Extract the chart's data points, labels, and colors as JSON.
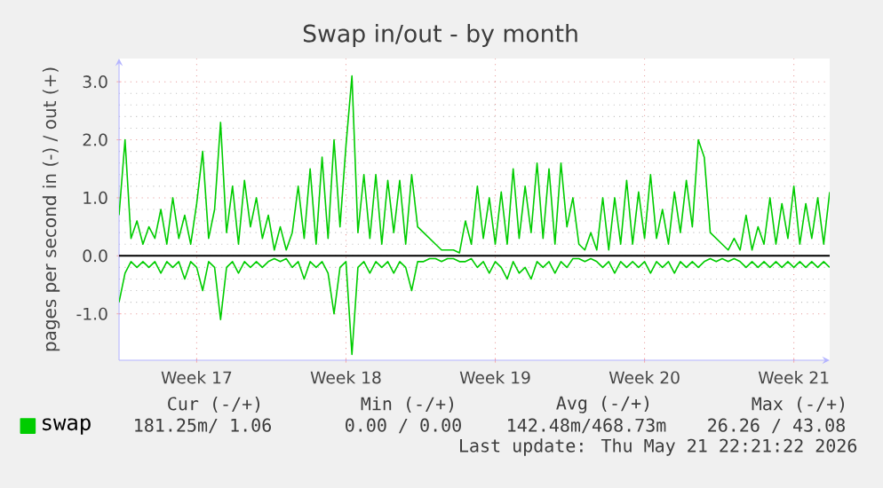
{
  "chart_data": {
    "type": "line",
    "title": "Swap in/out - by month",
    "ylabel": "pages per second in (-) / out (+)",
    "categories": [
      null,
      null,
      null,
      null,
      null,
      null,
      null,
      null,
      null,
      null,
      null,
      null,
      null,
      "Week 17",
      null,
      null,
      null,
      null,
      null,
      null,
      null,
      null,
      null,
      null,
      null,
      null,
      null,
      null,
      null,
      null,
      null,
      null,
      null,
      null,
      null,
      null,
      null,
      null,
      "Week 18",
      null,
      null,
      null,
      null,
      null,
      null,
      null,
      null,
      null,
      null,
      null,
      null,
      null,
      null,
      null,
      null,
      null,
      null,
      null,
      null,
      null,
      null,
      null,
      null,
      "Week 19",
      null,
      null,
      null,
      null,
      null,
      null,
      null,
      null,
      null,
      null,
      null,
      null,
      null,
      null,
      null,
      null,
      null,
      null,
      null,
      null,
      null,
      null,
      null,
      null,
      "Week 20",
      null,
      null,
      null,
      null,
      null,
      null,
      null,
      null,
      null,
      null,
      null,
      null,
      null,
      null,
      null,
      null,
      null,
      null,
      null,
      null,
      null,
      null,
      null,
      null,
      "Week 21",
      null,
      null,
      null,
      null,
      null,
      null
    ],
    "series": [
      {
        "name": "swap",
        "color": "#00cc00",
        "values": [
          0.7,
          2.0,
          0.3,
          0.6,
          0.2,
          0.5,
          0.3,
          0.8,
          0.2,
          1.0,
          0.3,
          0.7,
          0.2,
          0.9,
          1.8,
          0.3,
          0.8,
          2.3,
          0.4,
          1.2,
          0.2,
          1.3,
          0.5,
          1.0,
          0.3,
          0.7,
          0.1,
          0.5,
          0.1,
          0.4,
          1.2,
          0.3,
          1.5,
          0.2,
          1.7,
          0.3,
          2.0,
          0.5,
          1.9,
          3.1,
          0.4,
          1.4,
          0.3,
          1.4,
          0.2,
          1.3,
          0.4,
          1.3,
          0.2,
          1.4,
          0.5,
          0.4,
          0.3,
          0.2,
          0.1,
          0.1,
          0.1,
          0.05,
          0.6,
          0.2,
          1.2,
          0.3,
          1.0,
          0.2,
          1.1,
          0.2,
          1.5,
          0.3,
          1.2,
          0.4,
          1.6,
          0.3,
          1.5,
          0.2,
          1.6,
          0.5,
          1.0,
          0.2,
          0.1,
          0.4,
          0.1,
          1.0,
          0.1,
          1.0,
          0.2,
          1.3,
          0.2,
          1.1,
          0.3,
          1.4,
          0.3,
          0.8,
          0.2,
          1.1,
          0.4,
          1.3,
          0.5,
          2.0,
          1.7,
          0.4,
          0.3,
          0.2,
          0.1,
          0.3,
          0.1,
          0.7,
          0.1,
          0.5,
          0.2,
          1.0,
          0.2,
          0.9,
          0.3,
          1.2,
          0.2,
          0.9,
          0.3,
          1.0,
          0.2,
          1.1
        ]
      },
      {
        "color": "#00cc00",
        "values": [
          -0.8,
          -0.3,
          -0.1,
          -0.2,
          -0.1,
          -0.2,
          -0.1,
          -0.3,
          -0.1,
          -0.2,
          -0.1,
          -0.4,
          -0.1,
          -0.2,
          -0.6,
          -0.1,
          -0.2,
          -1.1,
          -0.2,
          -0.1,
          -0.3,
          -0.1,
          -0.2,
          -0.1,
          -0.2,
          -0.1,
          -0.05,
          -0.1,
          -0.05,
          -0.2,
          -0.1,
          -0.4,
          -0.1,
          -0.2,
          -0.1,
          -0.3,
          -1.0,
          -0.2,
          -0.1,
          -1.7,
          -0.2,
          -0.1,
          -0.3,
          -0.1,
          -0.2,
          -0.1,
          -0.3,
          -0.1,
          -0.2,
          -0.6,
          -0.1,
          -0.1,
          -0.05,
          -0.05,
          -0.1,
          -0.05,
          -0.05,
          -0.1,
          -0.1,
          -0.05,
          -0.2,
          -0.1,
          -0.3,
          -0.1,
          -0.2,
          -0.4,
          -0.1,
          -0.3,
          -0.2,
          -0.4,
          -0.1,
          -0.2,
          -0.1,
          -0.3,
          -0.1,
          -0.2,
          -0.05,
          -0.05,
          -0.1,
          -0.05,
          -0.1,
          -0.2,
          -0.1,
          -0.3,
          -0.1,
          -0.2,
          -0.1,
          -0.2,
          -0.1,
          -0.3,
          -0.1,
          -0.2,
          -0.1,
          -0.3,
          -0.1,
          -0.2,
          -0.1,
          -0.2,
          -0.1,
          -0.05,
          -0.1,
          -0.05,
          -0.1,
          -0.05,
          -0.1,
          -0.2,
          -0.1,
          -0.2,
          -0.1,
          -0.2,
          -0.1,
          -0.2,
          -0.1,
          -0.2,
          -0.1,
          -0.2,
          -0.1,
          -0.2,
          -0.1,
          -0.2
        ]
      }
    ],
    "ylim": [
      -1.8,
      3.4
    ],
    "yticks": [
      {
        "value": -1,
        "label": "-1.0"
      },
      {
        "value": 0,
        "label": "0.0"
      },
      {
        "value": 1,
        "label": "1.0"
      },
      {
        "value": 2,
        "label": "2.0"
      },
      {
        "value": 3,
        "label": "3.0"
      }
    ],
    "grid": true,
    "legend": "bottom",
    "ref_lines": [
      {
        "axis": "y",
        "value": 0,
        "color": "#000000"
      }
    ],
    "annotations": [
      "Cur (-/+)",
      "Min (-/+)",
      "Avg (-/+)",
      "Max (-/+)",
      "181.25m/ 1.06",
      "0.00 / 0.00",
      "142.48m/468.73m",
      "26.26 / 43.08",
      "Last update: Thu May 21 22:21:22 2026"
    ]
  }
}
